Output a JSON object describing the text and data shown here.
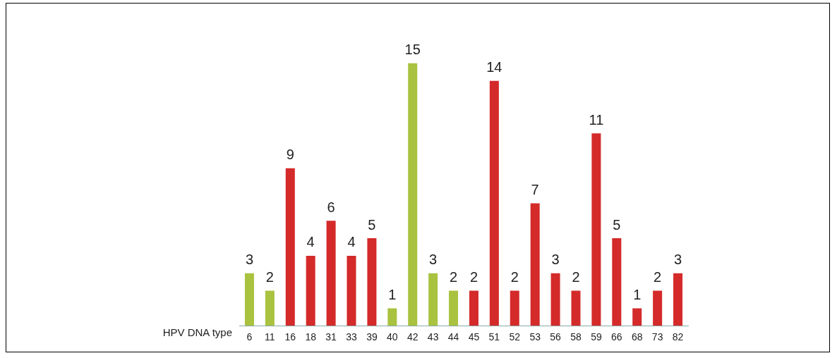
{
  "chart_data": {
    "type": "bar",
    "xlabel": "HPV DNA type",
    "categories": [
      "6",
      "11",
      "16",
      "18",
      "31",
      "33",
      "39",
      "40",
      "42",
      "43",
      "44",
      "45",
      "51",
      "52",
      "53",
      "56",
      "58",
      "59",
      "66",
      "68",
      "73",
      "82"
    ],
    "values": [
      3,
      2,
      9,
      4,
      6,
      4,
      5,
      1,
      15,
      3,
      2,
      2,
      14,
      2,
      7,
      3,
      2,
      11,
      5,
      1,
      2,
      3
    ],
    "colors": [
      "#a9c23f",
      "#a9c23f",
      "#d42a2a",
      "#d42a2a",
      "#d42a2a",
      "#d42a2a",
      "#d42a2a",
      "#a9c23f",
      "#a9c23f",
      "#a9c23f",
      "#a9c23f",
      "#d42a2a",
      "#d42a2a",
      "#d42a2a",
      "#d42a2a",
      "#d42a2a",
      "#d42a2a",
      "#d42a2a",
      "#d42a2a",
      "#d42a2a",
      "#d42a2a",
      "#d42a2a"
    ],
    "data_labels": true,
    "grid": false,
    "legend": false
  }
}
